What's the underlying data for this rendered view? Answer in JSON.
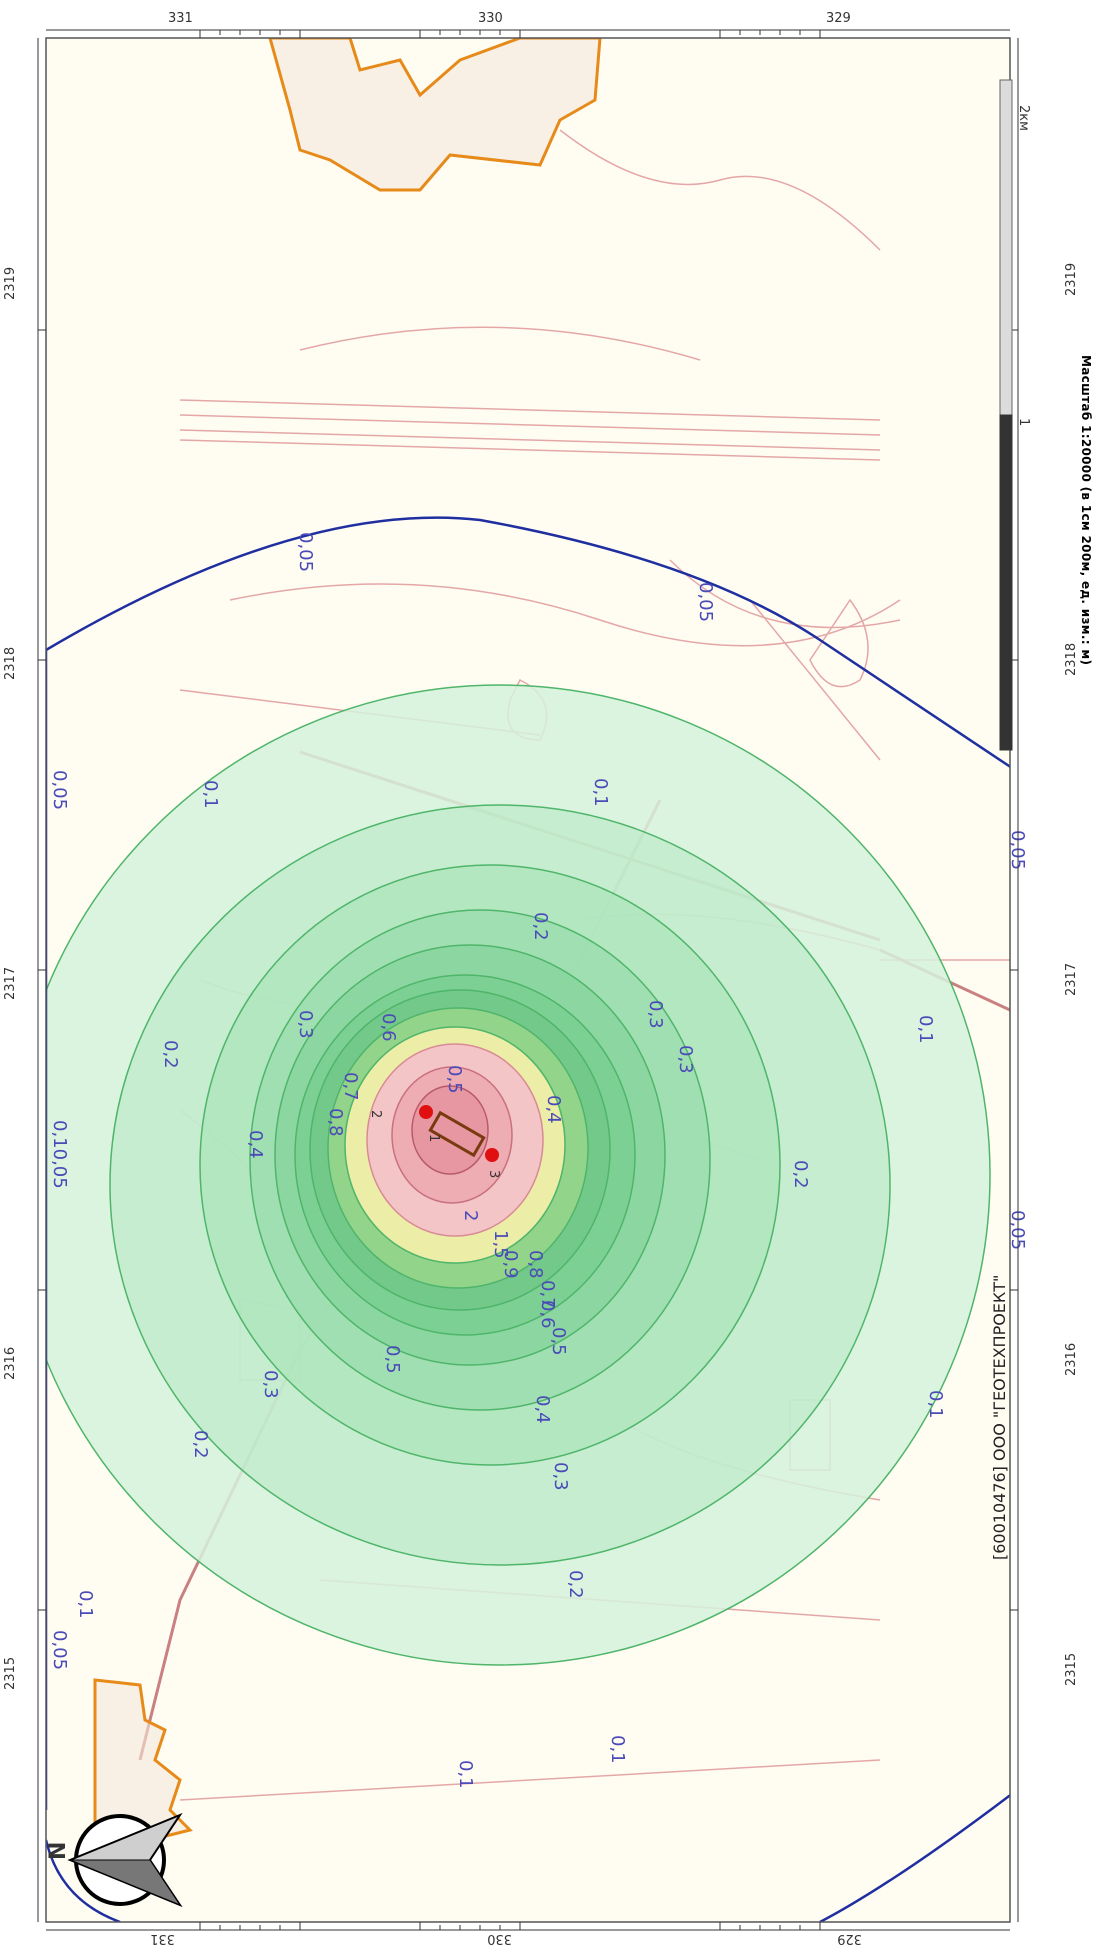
{
  "map": {
    "credit": "[60010476] ООО \"ГЕОТЕХПРОЕКТ\"",
    "scale_caption": "Масштаб 1:20000 (в 1см 200м, ед. изм.: м)",
    "scale_bar": {
      "label_mid": "1",
      "label_end": "2км"
    },
    "north_label": "N",
    "top_axis": [
      "331",
      "330",
      "329"
    ],
    "bottom_axis": [
      "331",
      "330",
      "329"
    ],
    "left_axis": [
      "2319",
      "2318",
      "2317",
      "2316",
      "2315"
    ],
    "right_axis": [
      "2319",
      "2318",
      "2317",
      "2316",
      "2315"
    ],
    "colors": {
      "boundary": "#1f2fa0",
      "background": "#fffcf2",
      "zone_outer": "#c9f0d4",
      "zone_mid": "#8fd9a4",
      "zone_yellow": "#f6f0a8",
      "zone_pink": "#f3c3c8",
      "settlement_outline": "#e68a1a",
      "road": "#d69090",
      "source": "#e01010"
    },
    "isoline_labels": [
      "0,05",
      "0,05",
      "0,05",
      "0,05",
      "0,05",
      "0,05",
      "0,1",
      "0,1",
      "0,1",
      "0,1",
      "0,1",
      "0,1",
      "0,1",
      "0,2",
      "0,2",
      "0,2",
      "0,2",
      "0,2",
      "0,3",
      "0,3",
      "0,3",
      "0,3",
      "0,3",
      "0,4",
      "0,4",
      "0,4",
      "0,5",
      "0,5",
      "0,5",
      "0,6",
      "0,6",
      "0,7",
      "0,7",
      "0,8",
      "0,8",
      "0,9",
      "1,5",
      "2"
    ],
    "source_labels": [
      "1",
      "2",
      "3"
    ],
    "combined_label": "0,10,05"
  }
}
